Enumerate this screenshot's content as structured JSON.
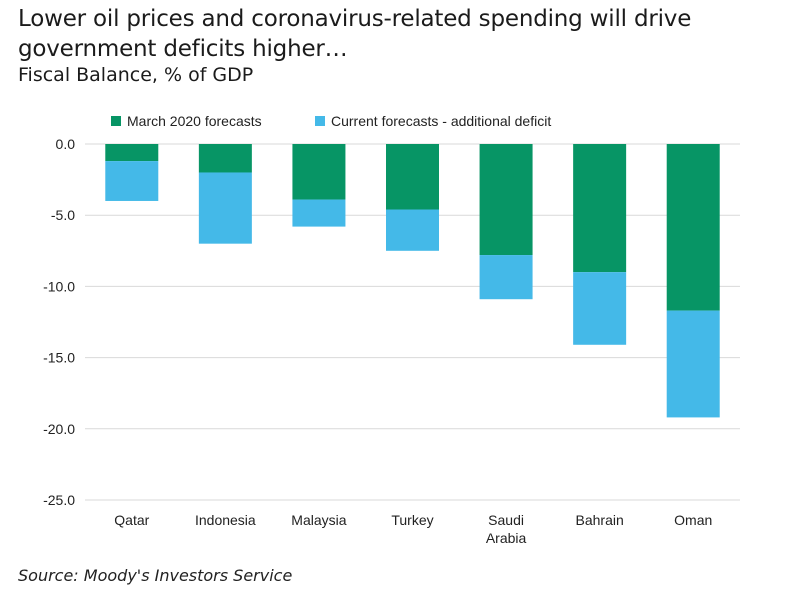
{
  "chart_data": {
    "type": "bar",
    "stacked": true,
    "title": "Lower oil prices and coronavirus-related spending will drive government deficits higher…",
    "subtitle": "Fiscal Balance, % of GDP",
    "source": "Source: Moody's Investors Service",
    "categories": [
      [
        "Qatar"
      ],
      [
        "Indonesia"
      ],
      [
        "Malaysia"
      ],
      [
        "Turkey"
      ],
      [
        "Saudi",
        "Arabia"
      ],
      [
        "Bahrain"
      ],
      [
        "Oman"
      ]
    ],
    "series": [
      {
        "name": "March 2020 forecasts",
        "color": "#079565",
        "values": [
          -1.2,
          -2.0,
          -3.9,
          -4.6,
          -7.8,
          -9.0,
          -11.7
        ]
      },
      {
        "name": "Current forecasts - additional deficit",
        "color": "#44b9e8",
        "values": [
          -2.8,
          -5.0,
          -1.9,
          -2.9,
          -3.1,
          -5.1,
          -7.5
        ]
      }
    ],
    "ylim": [
      -25,
      0
    ],
    "yticks": [
      0,
      -5,
      -10,
      -15,
      -20,
      -25
    ],
    "ytick_labels": [
      "0.0",
      "-5.0",
      "-10.0",
      "-15.0",
      "-20.0",
      "-25.0"
    ],
    "grid": true,
    "legend_position": "top"
  }
}
